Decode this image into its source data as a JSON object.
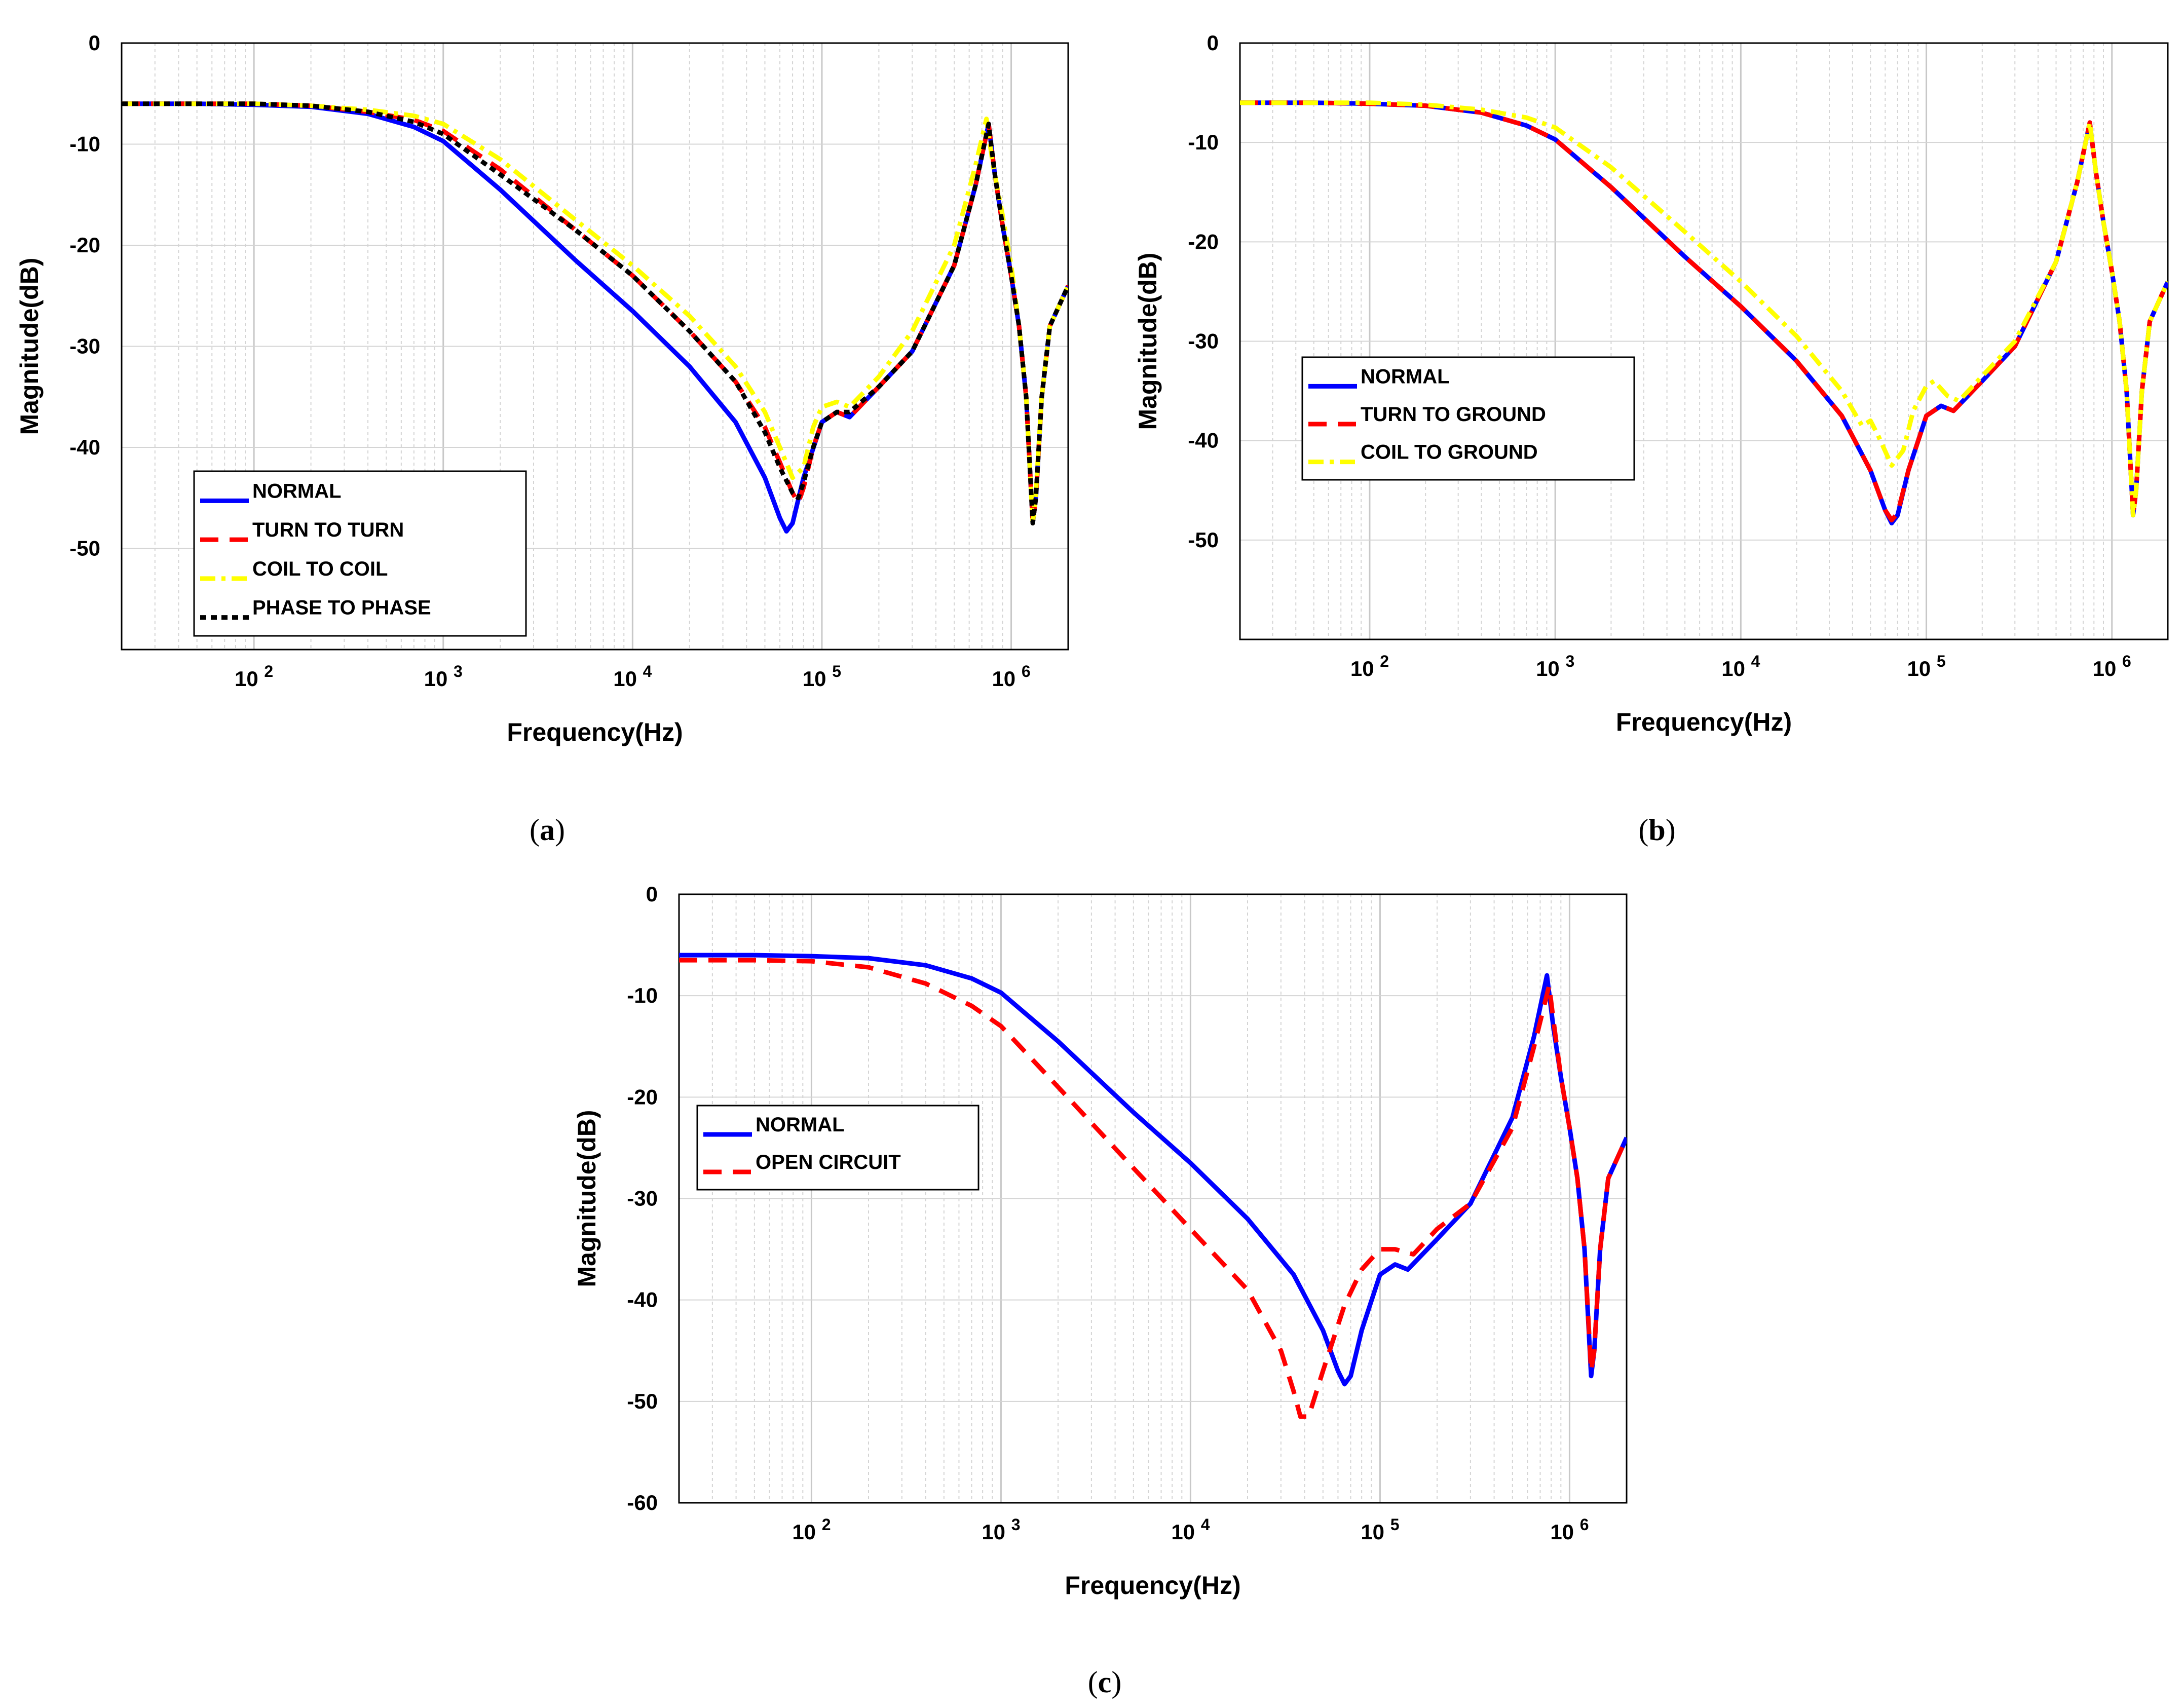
{
  "chart_data": [
    {
      "type": "line",
      "panel": "a",
      "caption_letter": "a",
      "xlabel": "Frequency(Hz)",
      "ylabel": "Magnitude(dB)",
      "xscale": "log",
      "xlim": [
        20,
        2000000
      ],
      "ylim": [
        -60,
        0
      ],
      "y_ticks": [
        0,
        -10,
        -20,
        -30,
        -40,
        -50
      ],
      "x_ticks": [
        {
          "base": "10",
          "exp": "2",
          "value": 100
        },
        {
          "base": "10",
          "exp": "3",
          "value": 1000
        },
        {
          "base": "10",
          "exp": "4",
          "value": 10000
        },
        {
          "base": "10",
          "exp": "5",
          "value": 100000
        },
        {
          "base": "10",
          "exp": "6",
          "value": 1000000
        }
      ],
      "grid": true,
      "legend_position": "bottom-left",
      "series": [
        {
          "name": "NORMAL",
          "color": "#0000ff",
          "style": "solid",
          "x": [
            20,
            50,
            100,
            200,
            400,
            700,
            1000,
            2000,
            5000,
            10000,
            20000,
            35000,
            50000,
            60000,
            65000,
            70000,
            80000,
            100000,
            120000,
            140000,
            200000,
            300000,
            500000,
            650000,
            760000,
            820000,
            900000,
            1000000,
            1100000,
            1200000,
            1300000,
            1350000,
            1450000,
            1600000,
            2000000
          ],
          "values": [
            -6,
            -6,
            -6.1,
            -6.3,
            -7,
            -8.3,
            -9.7,
            -14.5,
            -21.5,
            -26.5,
            -32,
            -37.5,
            -43,
            -47,
            -48.3,
            -47.5,
            -43,
            -37.5,
            -36.5,
            -37,
            -34,
            -30.5,
            -22,
            -14,
            -8,
            -13,
            -18,
            -23,
            -28,
            -35,
            -47.5,
            -45,
            -35,
            -28,
            -24
          ]
        },
        {
          "name": "TURN TO TURN",
          "color": "#ff0000",
          "style": "dashed",
          "x": [
            20,
            50,
            100,
            200,
            400,
            700,
            1000,
            2000,
            5000,
            10000,
            20000,
            35000,
            50000,
            60000,
            70000,
            75000,
            80000,
            90000,
            100000,
            120000,
            140000,
            200000,
            300000,
            500000,
            650000,
            760000,
            820000,
            900000,
            1000000,
            1100000,
            1200000,
            1300000,
            1350000,
            1450000,
            1600000,
            2000000
          ],
          "values": [
            -6,
            -6,
            -6,
            -6.2,
            -6.8,
            -7.6,
            -8.7,
            -12.5,
            -18.5,
            -23,
            -28.5,
            -33.5,
            -38,
            -41.5,
            -44.5,
            -45.5,
            -44,
            -40,
            -37.5,
            -36.5,
            -37,
            -34,
            -30.5,
            -22,
            -14,
            -8,
            -13,
            -18,
            -23,
            -28,
            -35,
            -47.5,
            -45,
            -35,
            -28,
            -24
          ]
        },
        {
          "name": "COIL TO COIL",
          "color": "#ffff00",
          "style": "dashdot",
          "x": [
            20,
            50,
            100,
            200,
            400,
            700,
            1000,
            2000,
            5000,
            10000,
            20000,
            35000,
            50000,
            60000,
            70000,
            80000,
            90000,
            100000,
            120000,
            140000,
            200000,
            300000,
            500000,
            650000,
            740000,
            800000,
            900000,
            1000000,
            1100000,
            1200000,
            1300000,
            1350000,
            1450000,
            1600000,
            2000000
          ],
          "values": [
            -6,
            -6,
            -6,
            -6.2,
            -6.6,
            -7.2,
            -8,
            -11.5,
            -17.5,
            -22,
            -27,
            -32,
            -36.5,
            -40,
            -43,
            -42,
            -38,
            -36,
            -35.5,
            -36,
            -33,
            -28.5,
            -20,
            -12,
            -7.5,
            -12,
            -17,
            -22,
            -28,
            -35,
            -47.5,
            -44.5,
            -35,
            -28,
            -24
          ]
        },
        {
          "name": "PHASE TO PHASE",
          "color": "#000000",
          "style": "dotted",
          "x": [
            20,
            50,
            100,
            200,
            400,
            700,
            1000,
            2000,
            5000,
            10000,
            20000,
            35000,
            50000,
            60000,
            70000,
            75000,
            80000,
            90000,
            100000,
            120000,
            140000,
            200000,
            300000,
            500000,
            650000,
            760000,
            820000,
            900000,
            1000000,
            1100000,
            1200000,
            1300000,
            1350000,
            1450000,
            1600000,
            2000000
          ],
          "values": [
            -6,
            -6,
            -6,
            -6.2,
            -6.8,
            -7.8,
            -9,
            -13,
            -18.5,
            -23,
            -28.5,
            -33.5,
            -38.5,
            -42,
            -44.5,
            -45,
            -43.5,
            -40,
            -37.5,
            -36.5,
            -36.5,
            -34,
            -30.5,
            -22,
            -14,
            -8,
            -13,
            -18,
            -23,
            -28,
            -35,
            -47.5,
            -45,
            -35,
            -28,
            -24
          ]
        }
      ]
    },
    {
      "type": "line",
      "panel": "b",
      "caption_letter": "b",
      "xlabel": "Frequency(Hz)",
      "ylabel": "Magnitude(dB)",
      "xscale": "log",
      "xlim": [
        20,
        2000000
      ],
      "ylim": [
        -60,
        0
      ],
      "y_ticks": [
        0,
        -10,
        -20,
        -30,
        -40,
        -50
      ],
      "x_ticks": [
        {
          "base": "10",
          "exp": "2",
          "value": 100
        },
        {
          "base": "10",
          "exp": "3",
          "value": 1000
        },
        {
          "base": "10",
          "exp": "4",
          "value": 10000
        },
        {
          "base": "10",
          "exp": "5",
          "value": 100000
        },
        {
          "base": "10",
          "exp": "6",
          "value": 1000000
        }
      ],
      "grid": true,
      "legend_position": "middle-left",
      "series": [
        {
          "name": "NORMAL",
          "color": "#0000ff",
          "style": "solid",
          "x": [
            20,
            50,
            100,
            200,
            400,
            700,
            1000,
            2000,
            5000,
            10000,
            20000,
            35000,
            50000,
            60000,
            65000,
            70000,
            80000,
            100000,
            120000,
            140000,
            200000,
            300000,
            500000,
            650000,
            760000,
            820000,
            900000,
            1000000,
            1100000,
            1200000,
            1300000,
            1350000,
            1450000,
            1600000,
            2000000
          ],
          "values": [
            -6,
            -6,
            -6.1,
            -6.3,
            -7,
            -8.3,
            -9.7,
            -14.5,
            -21.5,
            -26.5,
            -32,
            -37.5,
            -43,
            -47,
            -48.3,
            -47.5,
            -43,
            -37.5,
            -36.5,
            -37,
            -34,
            -30.5,
            -22,
            -14,
            -8,
            -13,
            -18,
            -23,
            -28,
            -35,
            -47.5,
            -45,
            -35,
            -28,
            -24
          ]
        },
        {
          "name": "TURN TO GROUND",
          "color": "#ff0000",
          "style": "dashed",
          "x": [
            20,
            50,
            100,
            200,
            400,
            700,
            1000,
            2000,
            5000,
            10000,
            20000,
            35000,
            50000,
            60000,
            65000,
            70000,
            80000,
            100000,
            120000,
            140000,
            200000,
            300000,
            500000,
            650000,
            760000,
            820000,
            900000,
            1000000,
            1100000,
            1200000,
            1300000,
            1350000,
            1450000,
            1600000,
            2000000
          ],
          "values": [
            -6,
            -6,
            -6.1,
            -6.3,
            -7,
            -8.3,
            -9.7,
            -14.5,
            -21.5,
            -26.5,
            -32,
            -37.5,
            -43,
            -47,
            -48,
            -47.3,
            -43,
            -37.5,
            -36.5,
            -37,
            -34,
            -30.5,
            -22,
            -14,
            -8,
            -13,
            -18,
            -23,
            -28,
            -35,
            -47.5,
            -45,
            -35,
            -28,
            -24
          ]
        },
        {
          "name": "COIL TO GROUND",
          "color": "#ffff00",
          "style": "dashdot",
          "x": [
            20,
            50,
            100,
            200,
            400,
            700,
            1000,
            2000,
            5000,
            10000,
            20000,
            35000,
            45000,
            50000,
            55000,
            65000,
            75000,
            85000,
            100000,
            110000,
            130000,
            150000,
            200000,
            300000,
            500000,
            650000,
            760000,
            820000,
            900000,
            1000000,
            1100000,
            1200000,
            1300000,
            1350000,
            1450000,
            1600000,
            2000000
          ],
          "values": [
            -6,
            -6,
            -6,
            -6.2,
            -6.7,
            -7.5,
            -8.5,
            -12.5,
            -19,
            -24,
            -29.5,
            -35,
            -38.5,
            -38,
            -39.5,
            -42.5,
            -41,
            -37,
            -34.5,
            -34,
            -35.5,
            -36,
            -33.5,
            -30,
            -22,
            -14,
            -8,
            -13,
            -18,
            -23,
            -28,
            -35,
            -47.5,
            -45,
            -35,
            -28,
            -24
          ]
        }
      ]
    },
    {
      "type": "line",
      "panel": "c",
      "caption_letter": "c",
      "xlabel": "Frequency(Hz)",
      "ylabel": "Magnitude(dB)",
      "xscale": "log",
      "xlim": [
        20,
        2000000
      ],
      "ylim": [
        -60,
        0
      ],
      "y_ticks": [
        0,
        -10,
        -20,
        -30,
        -40,
        -50,
        -60
      ],
      "x_ticks": [
        {
          "base": "10",
          "exp": "2",
          "value": 100
        },
        {
          "base": "10",
          "exp": "3",
          "value": 1000
        },
        {
          "base": "10",
          "exp": "4",
          "value": 10000
        },
        {
          "base": "10",
          "exp": "5",
          "value": 100000
        },
        {
          "base": "10",
          "exp": "6",
          "value": 1000000
        }
      ],
      "grid": true,
      "legend_position": "middle-left",
      "series": [
        {
          "name": "NORMAL",
          "color": "#0000ff",
          "style": "solid",
          "x": [
            20,
            50,
            100,
            200,
            400,
            700,
            1000,
            2000,
            5000,
            10000,
            20000,
            35000,
            50000,
            60000,
            65000,
            70000,
            80000,
            100000,
            120000,
            140000,
            200000,
            300000,
            500000,
            650000,
            760000,
            820000,
            900000,
            1000000,
            1100000,
            1200000,
            1300000,
            1350000,
            1450000,
            1600000,
            2000000
          ],
          "values": [
            -6,
            -6,
            -6.1,
            -6.3,
            -7,
            -8.3,
            -9.7,
            -14.5,
            -21.5,
            -26.5,
            -32,
            -37.5,
            -43,
            -47,
            -48.3,
            -47.5,
            -43,
            -37.5,
            -36.5,
            -37,
            -34,
            -30.5,
            -22,
            -14,
            -8,
            -13,
            -18,
            -23,
            -28,
            -35,
            -47.5,
            -45,
            -35,
            -28,
            -24
          ]
        },
        {
          "name": "OPEN CIRCUIT",
          "color": "#ff0000",
          "style": "dashed",
          "x": [
            20,
            50,
            100,
            200,
            400,
            700,
            1000,
            2000,
            5000,
            10000,
            20000,
            30000,
            35000,
            38000,
            42000,
            50000,
            65000,
            80000,
            100000,
            120000,
            150000,
            200000,
            300000,
            500000,
            650000,
            780000,
            830000,
            900000,
            1000000,
            1100000,
            1200000,
            1300000,
            1350000,
            1450000,
            1600000,
            2000000
          ],
          "values": [
            -6.5,
            -6.5,
            -6.6,
            -7.2,
            -8.8,
            -11,
            -13,
            -19,
            -27,
            -33,
            -39,
            -45,
            -49,
            -51.5,
            -51.5,
            -47,
            -40.5,
            -37,
            -35,
            -35,
            -35.5,
            -33,
            -30.5,
            -23,
            -15,
            -9,
            -13,
            -18,
            -23,
            -28,
            -35,
            -47,
            -45,
            -35,
            -28,
            -24
          ]
        }
      ]
    }
  ]
}
